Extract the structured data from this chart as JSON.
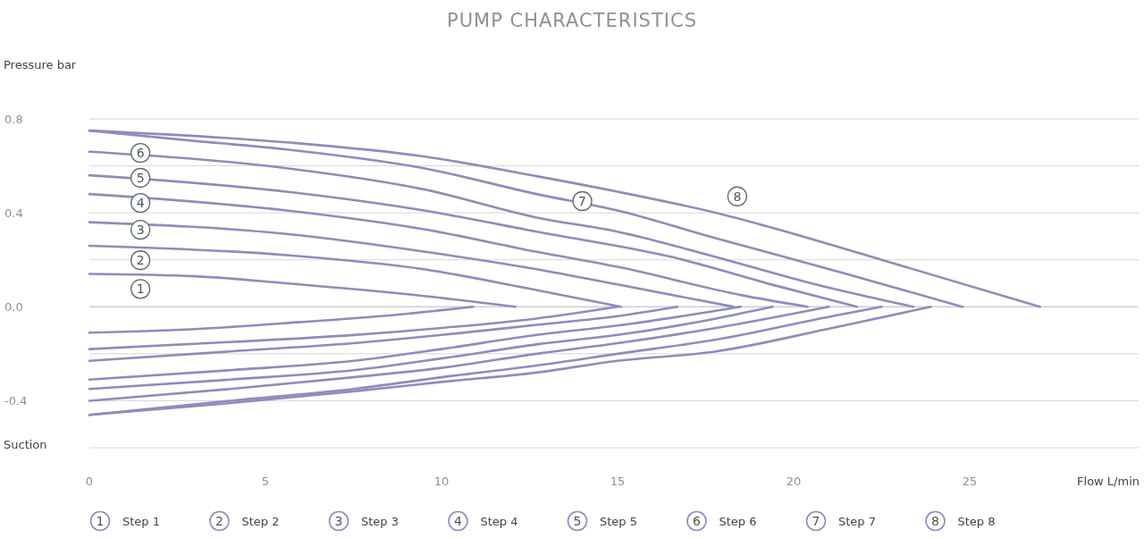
{
  "chart_data": {
    "type": "line",
    "title": "PUMP CHARACTERISTICS",
    "ylabel": "Pressure bar",
    "xlabel": "Flow L/min",
    "xlim": [
      0,
      29.8
    ],
    "xticks": [
      0,
      5,
      10,
      15,
      20,
      25
    ],
    "ylim": [
      -0.6,
      0.8
    ],
    "yticks": [
      {
        "value": -0.6,
        "label": null
      },
      {
        "value": -0.4,
        "label": "-0.4"
      },
      {
        "value": -0.2,
        "label": null
      },
      {
        "value": 0,
        "label": "0.0"
      },
      {
        "value": 0.2,
        "label": null
      },
      {
        "value": 0.4,
        "label": "0.4"
      },
      {
        "value": 0.6,
        "label": null
      },
      {
        "value": 0.8,
        "label": "0.8"
      }
    ],
    "grid": "y",
    "legend": "bottom",
    "marker": "none",
    "line_style": "solid",
    "annotations": [
      {
        "text": "1",
        "x": 1.45,
        "y": 0.076
      },
      {
        "text": "2",
        "x": 1.45,
        "y": 0.198
      },
      {
        "text": "3",
        "x": 1.45,
        "y": 0.328
      },
      {
        "text": "4",
        "x": 1.45,
        "y": 0.442
      },
      {
        "text": "5",
        "x": 1.45,
        "y": 0.549
      },
      {
        "text": "6",
        "x": 1.45,
        "y": 0.655
      },
      {
        "text": "7",
        "x": 14.0,
        "y": 0.45
      },
      {
        "text": "8",
        "x": 18.4,
        "y": 0.47
      },
      "Suction"
    ],
    "series": [
      {
        "name": "Step 1",
        "color": "#8e8cbc",
        "x": [
          0,
          3,
          5.6,
          9.5,
          12.1
        ],
        "values": [
          0.14,
          0.13,
          0.1,
          0.046,
          0
        ]
      },
      {
        "name": "Step 2",
        "color": "#8e8cbc",
        "x": [
          0,
          5.6,
          9.5,
          12.4,
          15.1
        ],
        "values": [
          0.26,
          0.22,
          0.16,
          0.08,
          0
        ]
      },
      {
        "name": "Step 3",
        "color": "#8e8cbc",
        "x": [
          0,
          5.6,
          9.5,
          12.7,
          15,
          18.3
        ],
        "values": [
          0.36,
          0.31,
          0.235,
          0.16,
          0.095,
          0
        ]
      },
      {
        "name": "Step 4",
        "color": "#8e8cbc",
        "x": [
          0,
          5.6,
          9.5,
          12.7,
          15,
          18.5,
          20.4
        ],
        "values": [
          0.48,
          0.41,
          0.33,
          0.234,
          0.17,
          0.05,
          0
        ]
      },
      {
        "name": "Step 5",
        "color": "#8e8cbc",
        "x": [
          0,
          5.6,
          9.5,
          12.7,
          16.6,
          19.5,
          21.8
        ],
        "values": [
          0.56,
          0.49,
          0.41,
          0.32,
          0.21,
          0.09,
          0
        ]
      },
      {
        "name": "Step 6",
        "color": "#8e8cbc",
        "x": [
          0,
          5.6,
          9.5,
          12.7,
          15,
          17.6,
          20.5,
          23.4
        ],
        "values": [
          0.66,
          0.59,
          0.5,
          0.38,
          0.32,
          0.22,
          0.1,
          0
        ]
      },
      {
        "name": "Step 7",
        "color": "#8e8cbc",
        "x": [
          0,
          2.7,
          5.6,
          9.5,
          12.7,
          15,
          17.6,
          21.5,
          24.8
        ],
        "values": [
          0.75,
          0.71,
          0.67,
          0.59,
          0.48,
          0.41,
          0.3,
          0.14,
          0
        ]
      },
      {
        "name": "Step 8",
        "color": "#8e8cbc",
        "x": [
          0,
          5.6,
          9.5,
          12.7,
          15,
          17.8,
          22.5,
          27
        ],
        "values": [
          0.75,
          0.7,
          0.64,
          0.556,
          0.49,
          0.4,
          0.2,
          0
        ]
      },
      {
        "color": "#8e8cbc",
        "x": [
          0,
          3,
          6,
          9,
          10.9
        ],
        "values": [
          -0.11,
          -0.095,
          -0.065,
          -0.03,
          0
        ]
      },
      {
        "color": "#8e8cbc",
        "x": [
          0,
          4,
          7.5,
          10,
          12.7,
          15
        ],
        "values": [
          -0.18,
          -0.15,
          -0.12,
          -0.09,
          -0.05,
          0
        ]
      },
      {
        "color": "#8e8cbc",
        "x": [
          0,
          4,
          7.5,
          10,
          12.7,
          15,
          16.7
        ],
        "values": [
          -0.23,
          -0.19,
          -0.155,
          -0.12,
          -0.077,
          -0.04,
          0
        ]
      },
      {
        "color": "#8e8cbc",
        "x": [
          0,
          4,
          7.5,
          10,
          12.7,
          15,
          18.5
        ],
        "values": [
          -0.31,
          -0.27,
          -0.23,
          -0.18,
          -0.12,
          -0.08,
          0
        ]
      },
      {
        "color": "#8e8cbc",
        "x": [
          0,
          4,
          7.5,
          10,
          12.7,
          15,
          17.8,
          19.4
        ],
        "values": [
          -0.35,
          -0.31,
          -0.27,
          -0.22,
          -0.16,
          -0.12,
          -0.05,
          0
        ]
      },
      {
        "color": "#8e8cbc",
        "x": [
          0,
          4,
          7.5,
          10,
          12.7,
          15,
          17.8,
          21
        ],
        "values": [
          -0.4,
          -0.35,
          -0.3,
          -0.26,
          -0.2,
          -0.155,
          -0.09,
          0
        ]
      },
      {
        "color": "#8e8cbc",
        "x": [
          0,
          4,
          7.5,
          10,
          12.7,
          15,
          17.8,
          21.1,
          22.5
        ],
        "values": [
          -0.46,
          -0.4,
          -0.35,
          -0.3,
          -0.25,
          -0.2,
          -0.14,
          -0.04,
          0
        ]
      },
      {
        "color": "#8e8cbc",
        "x": [
          0,
          4,
          7.5,
          10,
          12.7,
          15,
          17.8,
          21.1,
          23.9
        ],
        "values": [
          -0.46,
          -0.41,
          -0.36,
          -0.32,
          -0.28,
          -0.23,
          -0.19,
          -0.09,
          0
        ]
      }
    ]
  }
}
